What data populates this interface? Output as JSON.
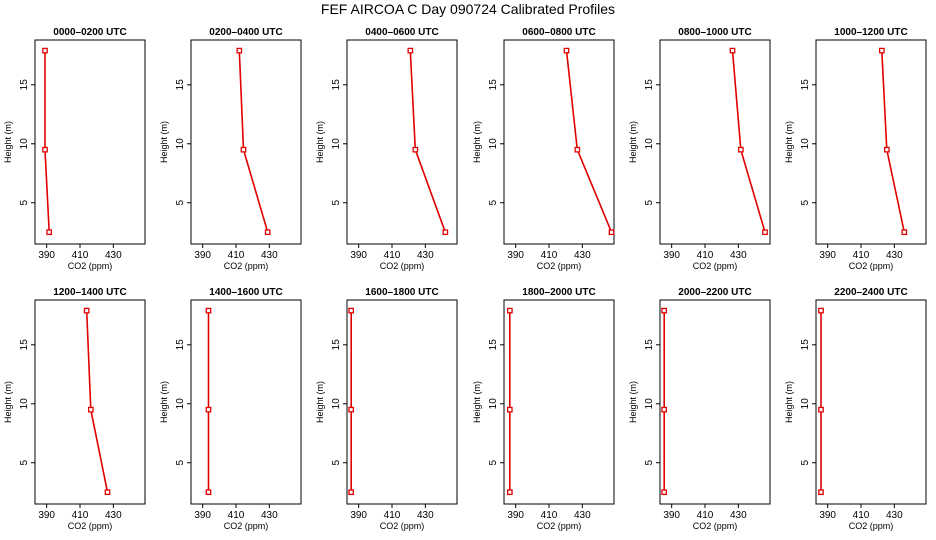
{
  "chart_data": {
    "type": "line",
    "title": "FEF AIRCOA C  Day 090724  Calibrated Profiles",
    "xlabel": "CO2 (ppm)",
    "ylabel": "Height (m)",
    "xlim": [
      383,
      449
    ],
    "ylim": [
      1.5,
      18.8
    ],
    "x_ticks": [
      390,
      410,
      430
    ],
    "y_ticks": [
      5,
      10,
      15
    ],
    "heights": [
      2.5,
      9.5,
      17.9
    ],
    "line_color": "#e00000",
    "panels": [
      {
        "label": "0000–0200 UTC",
        "co2": [
          391.5,
          389.0,
          389.0
        ]
      },
      {
        "label": "0200–0400 UTC",
        "co2": [
          429.0,
          414.5,
          412.0
        ]
      },
      {
        "label": "0400–0600 UTC",
        "co2": [
          442.0,
          424.0,
          421.0
        ]
      },
      {
        "label": "0600–0800 UTC",
        "co2": [
          447.5,
          427.0,
          420.5
        ]
      },
      {
        "label": "0800–1000 UTC",
        "co2": [
          446.0,
          431.5,
          426.5
        ]
      },
      {
        "label": "1000–1200 UTC",
        "co2": [
          436.0,
          425.5,
          422.5
        ]
      },
      {
        "label": "1200–1400 UTC",
        "co2": [
          426.5,
          416.5,
          414.0
        ]
      },
      {
        "label": "1400–1600 UTC",
        "co2": [
          393.5,
          393.5,
          393.5
        ]
      },
      {
        "label": "1600–1800 UTC",
        "co2": [
          385.5,
          385.5,
          385.5
        ]
      },
      {
        "label": "1800–2000 UTC",
        "co2": [
          386.5,
          386.5,
          386.5
        ]
      },
      {
        "label": "2000–2200 UTC",
        "co2": [
          385.5,
          385.5,
          385.5
        ]
      },
      {
        "label": "2200–2400 UTC",
        "co2": [
          386.0,
          386.0,
          386.0
        ]
      }
    ]
  }
}
